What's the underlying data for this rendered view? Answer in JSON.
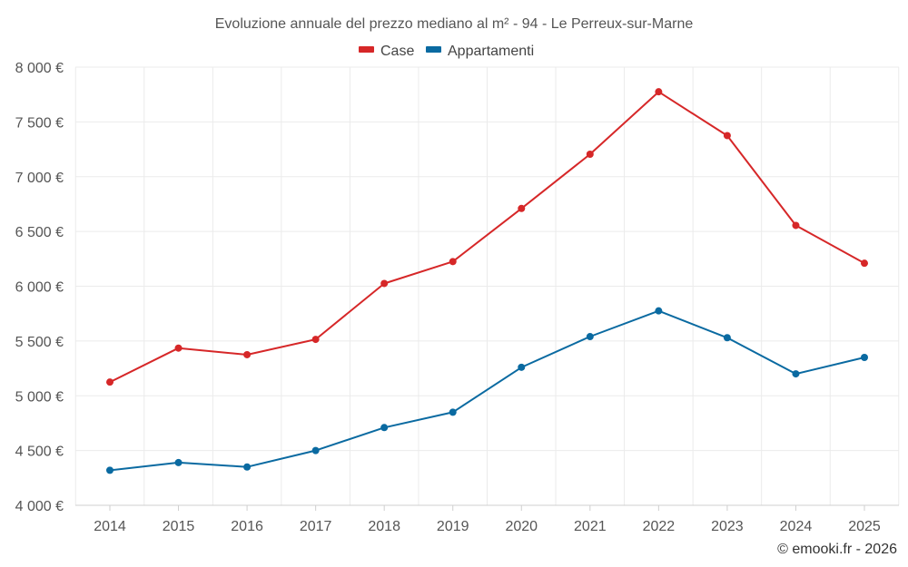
{
  "chart_data": {
    "type": "line",
    "title": "Evoluzione annuale del prezzo mediano al m² - 94 - Le Perreux-sur-Marne",
    "categories": [
      "2014",
      "2015",
      "2016",
      "2017",
      "2018",
      "2019",
      "2020",
      "2021",
      "2022",
      "2023",
      "2024",
      "2025"
    ],
    "series": [
      {
        "name": "Case",
        "color": "#d62728",
        "values": [
          5125,
          5435,
          5375,
          5515,
          6025,
          6225,
          6710,
          7205,
          7775,
          7375,
          6555,
          6210
        ]
      },
      {
        "name": "Appartamenti",
        "color": "#0a6aa1",
        "values": [
          4320,
          4390,
          4350,
          4500,
          4710,
          4850,
          5260,
          5540,
          5775,
          5530,
          5200,
          5350
        ]
      }
    ],
    "ylim": [
      4000,
      8000
    ],
    "yticks": [
      4000,
      4500,
      5000,
      5500,
      6000,
      6500,
      7000,
      7500,
      8000
    ],
    "ytick_labels": [
      "4 000 €",
      "4 500 €",
      "5 000 €",
      "5 500 €",
      "6 000 €",
      "6 500 €",
      "7 000 €",
      "7 500 €",
      "8 000 €"
    ],
    "xlabel": "",
    "ylabel": "",
    "grid": true,
    "legend_position": "top-center"
  },
  "credit": "© emooki.fr - 2026"
}
